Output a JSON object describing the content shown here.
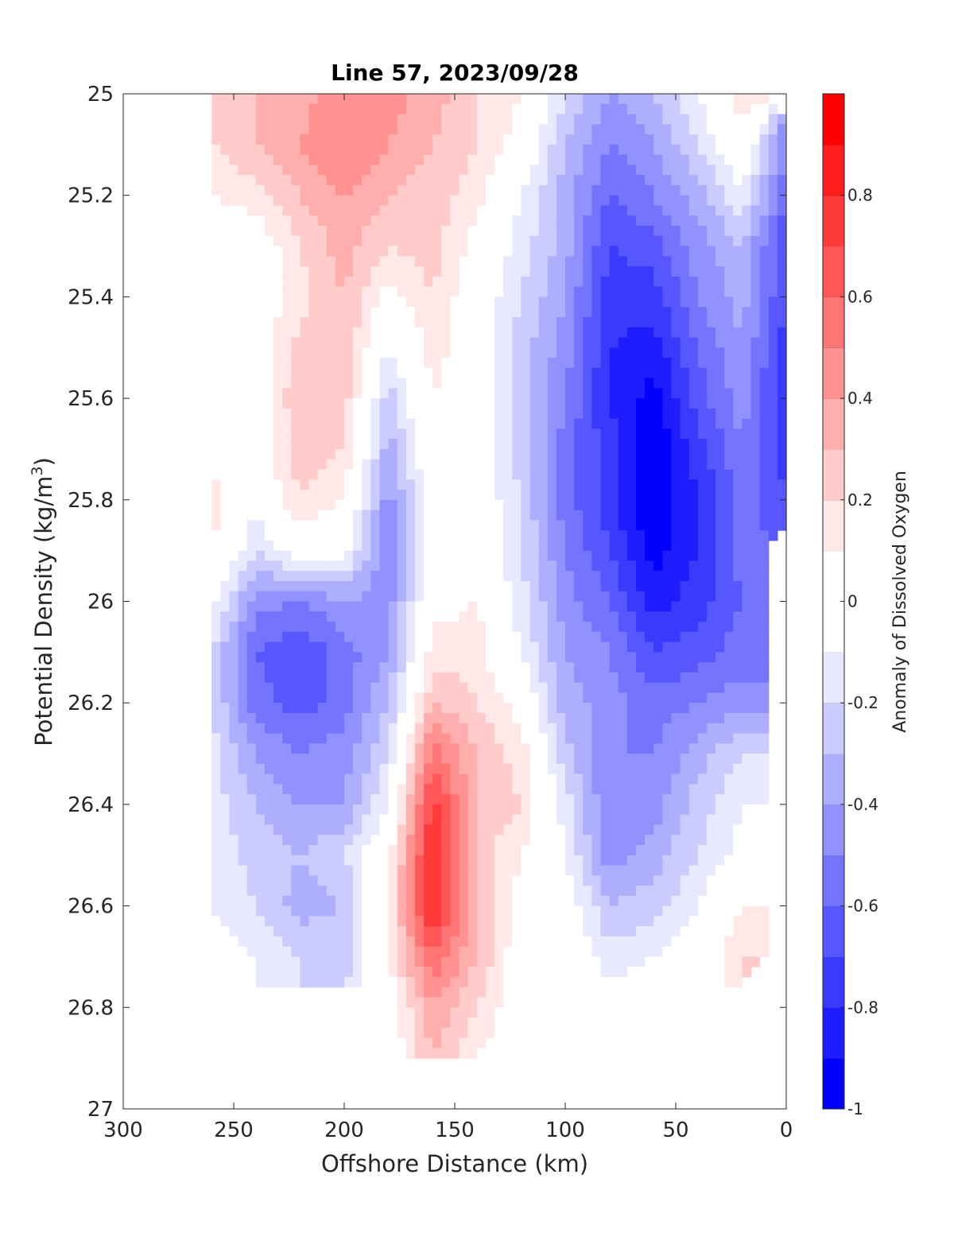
{
  "chart_data": {
    "type": "heatmap",
    "title": "Line 57, 2023/09/28",
    "xlabel": "Offshore Distance (km)",
    "ylabel_main": "Potential Density (kg/m",
    "ylabel_sup": "3",
    "ylabel_tail": ")",
    "colorbar_label": "Anomaly of Dissolved Oxygen",
    "xlim": [
      300,
      0
    ],
    "ylim": [
      25,
      27
    ],
    "clim": [
      -1,
      1
    ],
    "level_step": 0.1,
    "x_reversed": true,
    "y_reversed": true,
    "xticks": [
      "300",
      "250",
      "200",
      "150",
      "100",
      "50",
      "0"
    ],
    "xtick_values": [
      300,
      250,
      200,
      150,
      100,
      50,
      0
    ],
    "yticks": [
      "25",
      "25.2",
      "25.4",
      "25.6",
      "25.8",
      "26",
      "26.2",
      "26.4",
      "26.6",
      "26.8",
      "27"
    ],
    "ytick_values": [
      25,
      25.2,
      25.4,
      25.6,
      25.8,
      26,
      26.2,
      26.4,
      26.6,
      26.8,
      27
    ],
    "cticks": [
      "-1",
      "-0.8",
      "-0.6",
      "-0.4",
      "-0.2",
      "0",
      "0.2",
      "0.4",
      "0.6",
      "0.8"
    ],
    "ctick_values": [
      -1,
      -0.8,
      -0.6,
      -0.4,
      -0.2,
      0,
      0.2,
      0.4,
      0.6,
      0.8
    ],
    "colors": {
      "positive": "#ff0000",
      "negative": "#0000ff",
      "neutral": "#ffffff"
    },
    "x": [
      260,
      240,
      220,
      200,
      180,
      160,
      140,
      120,
      100,
      80,
      60,
      40,
      20,
      0
    ],
    "y": [
      25.0,
      25.1,
      25.2,
      25.3,
      25.4,
      25.5,
      25.6,
      25.7,
      25.8,
      25.9,
      26.0,
      26.1,
      26.2,
      26.3,
      26.4,
      26.5,
      26.6,
      26.7,
      26.8,
      26.9
    ],
    "z": [
      [
        0.25,
        0.3,
        0.35,
        0.5,
        0.45,
        0.35,
        0.2,
        0.1,
        -0.2,
        -0.4,
        -0.3,
        -0.1,
        0.2,
        null
      ],
      [
        0.2,
        0.3,
        0.4,
        0.5,
        0.4,
        0.3,
        0.2,
        0.05,
        -0.3,
        -0.5,
        -0.4,
        -0.2,
        0.05,
        -0.5
      ],
      [
        0.1,
        0.15,
        0.3,
        0.4,
        0.3,
        0.25,
        0.15,
        -0.1,
        -0.35,
        -0.6,
        -0.5,
        -0.35,
        -0.1,
        -0.6
      ],
      [
        0.0,
        0.0,
        0.2,
        0.35,
        0.2,
        0.25,
        0.05,
        -0.15,
        -0.35,
        -0.7,
        -0.65,
        -0.45,
        -0.3,
        -0.7
      ],
      [
        -0.1,
        0.0,
        0.15,
        0.3,
        0.05,
        0.2,
        0.0,
        -0.2,
        -0.4,
        -0.75,
        -0.75,
        -0.5,
        -0.35,
        -0.7
      ],
      [
        -0.1,
        0.0,
        0.25,
        0.3,
        -0.1,
        0.15,
        0.0,
        -0.25,
        -0.45,
        -0.8,
        -0.85,
        -0.6,
        -0.4,
        -0.75
      ],
      [
        -0.1,
        0.0,
        0.3,
        0.25,
        -0.25,
        0.1,
        0.0,
        -0.25,
        -0.5,
        -0.8,
        -0.95,
        -0.65,
        -0.45,
        -0.8
      ],
      [
        0.05,
        0.0,
        0.25,
        0.2,
        -0.35,
        0.05,
        0.0,
        -0.25,
        -0.55,
        -0.75,
        -1.0,
        -0.75,
        -0.5,
        -0.75
      ],
      [
        0.15,
        -0.05,
        0.2,
        0.1,
        -0.45,
        0.0,
        0.0,
        -0.2,
        -0.55,
        -0.75,
        -1.0,
        -0.8,
        -0.55,
        -0.7
      ],
      [
        0.1,
        -0.2,
        0.0,
        -0.05,
        -0.5,
        0.0,
        0.05,
        -0.2,
        -0.5,
        -0.7,
        -0.95,
        -0.8,
        -0.55,
        null
      ],
      [
        -0.05,
        -0.45,
        -0.5,
        -0.4,
        -0.45,
        0.05,
        0.1,
        -0.15,
        -0.45,
        -0.6,
        -0.85,
        -0.75,
        -0.6,
        null
      ],
      [
        -0.2,
        -0.6,
        -0.7,
        -0.55,
        -0.4,
        0.15,
        0.15,
        -0.1,
        -0.4,
        -0.5,
        -0.7,
        -0.65,
        -0.55,
        null
      ],
      [
        -0.2,
        -0.55,
        -0.65,
        -0.55,
        -0.3,
        0.3,
        0.2,
        0.05,
        -0.35,
        -0.45,
        -0.55,
        -0.5,
        -0.45,
        null
      ],
      [
        -0.15,
        -0.4,
        -0.5,
        -0.45,
        -0.2,
        0.55,
        0.3,
        0.15,
        -0.25,
        -0.5,
        -0.5,
        -0.35,
        -0.2,
        null
      ],
      [
        -0.15,
        -0.3,
        -0.4,
        -0.4,
        -0.1,
        0.75,
        0.3,
        0.2,
        -0.15,
        -0.5,
        -0.45,
        -0.25,
        -0.1,
        null
      ],
      [
        -0.1,
        -0.25,
        -0.3,
        -0.2,
        0.05,
        0.85,
        0.25,
        0.1,
        -0.1,
        -0.45,
        -0.35,
        -0.2,
        -0.05,
        null
      ],
      [
        -0.1,
        -0.2,
        -0.35,
        -0.3,
        0.1,
        0.85,
        0.3,
        0.05,
        0.0,
        -0.3,
        -0.25,
        -0.1,
        0.1,
        null
      ],
      [
        -0.05,
        -0.1,
        -0.2,
        -0.25,
        0.1,
        0.6,
        0.3,
        0.0,
        0.0,
        -0.15,
        -0.1,
        0.0,
        0.2,
        null
      ],
      [
        null,
        null,
        null,
        null,
        0.0,
        0.4,
        0.2,
        0.0,
        0.0,
        -0.05,
        0.0,
        0.0,
        null,
        null
      ],
      [
        null,
        null,
        null,
        null,
        0.0,
        0.3,
        0.1,
        0.0,
        -0.1,
        0.0,
        0.0,
        null,
        null,
        null
      ]
    ]
  }
}
